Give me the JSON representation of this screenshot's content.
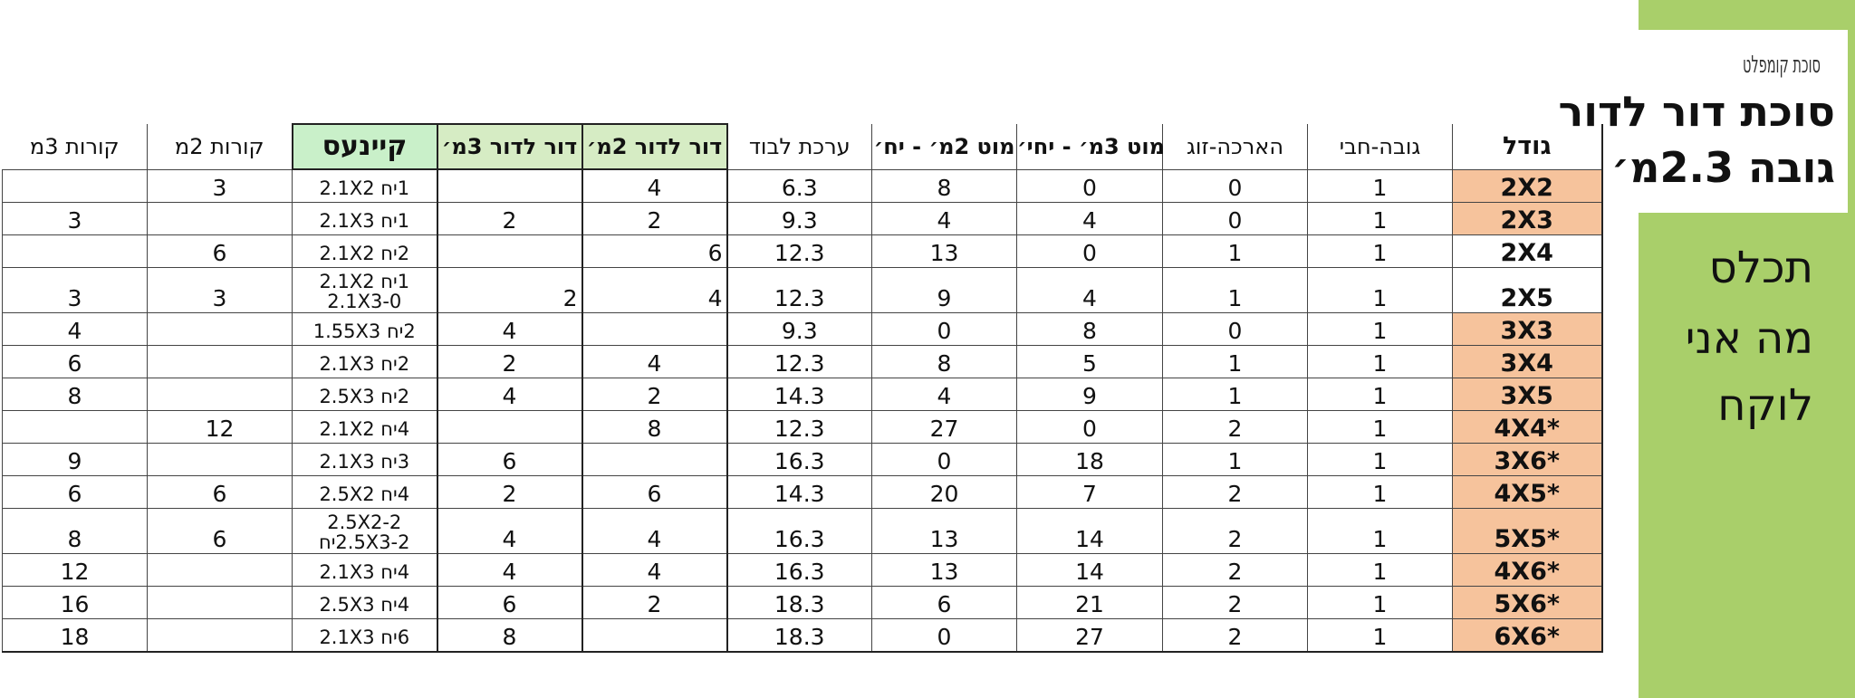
{
  "side_panel": {
    "brand": "סוכת קומפלט",
    "title_line1": "סוכת דור לדור",
    "title_line2": "גובה 2.3מ׳",
    "subtitle_line1": "תכלס",
    "subtitle_line2": "מה אני",
    "subtitle_line3": "לוקח",
    "green_color": "#a9cf6a"
  },
  "table": {
    "headers": {
      "size": "גודל",
      "height_pack": "גובה-חבי",
      "extension_pair": "הארכה-זוג",
      "pole3_unit": "מוט 3מ׳ - יחי׳",
      "pole2_unit": "מוט 2מ׳ - יח׳",
      "cover_value": "ערכת לבוד",
      "dor2": "דור לדור 2מ׳",
      "dor3": "דור לדור 3מ׳",
      "canvas": "קיינעס",
      "beams2": "קורות 2מ",
      "beams3": "קורות 3מ"
    },
    "highlight_color": "#f6c39c",
    "rows": [
      {
        "size": "2X2",
        "height_pack": "1",
        "extension_pair": "0",
        "pole3_unit": "0",
        "pole2_unit": "8",
        "cover_value": "6.3",
        "dor2": "4",
        "dor3": "",
        "canvas": [
          "1יח 2.1X2"
        ],
        "beams2": "3",
        "beams3": "",
        "highlight": true
      },
      {
        "size": "2X3",
        "height_pack": "1",
        "extension_pair": "0",
        "pole3_unit": "4",
        "pole2_unit": "4",
        "cover_value": "9.3",
        "dor2": "2",
        "dor3": "2",
        "canvas": [
          "1יח 2.1X3"
        ],
        "beams2": "",
        "beams3": "3",
        "highlight": true
      },
      {
        "size": "2X4",
        "height_pack": "1",
        "extension_pair": "1",
        "pole3_unit": "0",
        "pole2_unit": "13",
        "cover_value": "12.3",
        "dor2": "6",
        "dor3": "",
        "canvas": [
          "2יח 2.1X2"
        ],
        "beams2": "6",
        "beams3": "",
        "highlight": false
      },
      {
        "size": "2X5",
        "height_pack": "1",
        "extension_pair": "1",
        "pole3_unit": "4",
        "pole2_unit": "9",
        "cover_value": "12.3",
        "dor2": "4",
        "dor3": "2",
        "canvas": [
          "1יח 2.1X2",
          "2.1X3-0"
        ],
        "beams2": "3",
        "beams3": "3",
        "highlight": false
      },
      {
        "size": "3X3",
        "height_pack": "1",
        "extension_pair": "0",
        "pole3_unit": "8",
        "pole2_unit": "0",
        "cover_value": "9.3",
        "dor2": "",
        "dor3": "4",
        "canvas": [
          "2יח 1.55X3"
        ],
        "beams2": "",
        "beams3": "4",
        "highlight": true
      },
      {
        "size": "3X4",
        "height_pack": "1",
        "extension_pair": "1",
        "pole3_unit": "5",
        "pole2_unit": "8",
        "cover_value": "12.3",
        "dor2": "4",
        "dor3": "2",
        "canvas": [
          "2יח 2.1X3"
        ],
        "beams2": "",
        "beams3": "6",
        "highlight": true
      },
      {
        "size": "3X5",
        "height_pack": "1",
        "extension_pair": "1",
        "pole3_unit": "9",
        "pole2_unit": "4",
        "cover_value": "14.3",
        "dor2": "2",
        "dor3": "4",
        "canvas": [
          "2יח 2.5X3"
        ],
        "beams2": "",
        "beams3": "8",
        "highlight": true
      },
      {
        "size": "4X4*",
        "height_pack": "1",
        "extension_pair": "2",
        "pole3_unit": "0",
        "pole2_unit": "27",
        "cover_value": "12.3",
        "dor2": "8",
        "dor3": "",
        "canvas": [
          "4יח 2.1X2"
        ],
        "beams2": "12",
        "beams3": "",
        "highlight": true
      },
      {
        "size": "3X6*",
        "height_pack": "1",
        "extension_pair": "1",
        "pole3_unit": "18",
        "pole2_unit": "0",
        "cover_value": "16.3",
        "dor2": "",
        "dor3": "6",
        "canvas": [
          "3יח 2.1X3"
        ],
        "beams2": "",
        "beams3": "9",
        "highlight": true
      },
      {
        "size": "4X5*",
        "height_pack": "1",
        "extension_pair": "2",
        "pole3_unit": "7",
        "pole2_unit": "20",
        "cover_value": "14.3",
        "dor2": "6",
        "dor3": "2",
        "canvas": [
          "4יח 2.5X2"
        ],
        "beams2": "6",
        "beams3": "6",
        "highlight": true
      },
      {
        "size": "5X5*",
        "height_pack": "1",
        "extension_pair": "2",
        "pole3_unit": "14",
        "pole2_unit": "13",
        "cover_value": "16.3",
        "dor2": "4",
        "dor3": "4",
        "canvas": [
          "2.5X2-2",
          "2.5X3-2יח"
        ],
        "beams2": "6",
        "beams3": "8",
        "highlight": true
      },
      {
        "size": "4X6*",
        "height_pack": "1",
        "extension_pair": "2",
        "pole3_unit": "14",
        "pole2_unit": "13",
        "cover_value": "16.3",
        "dor2": "4",
        "dor3": "4",
        "canvas": [
          "4יח 2.1X3"
        ],
        "beams2": "",
        "beams3": "12",
        "highlight": true
      },
      {
        "size": "5X6*",
        "height_pack": "1",
        "extension_pair": "2",
        "pole3_unit": "21",
        "pole2_unit": "6",
        "cover_value": "18.3",
        "dor2": "2",
        "dor3": "6",
        "canvas": [
          "4יח 2.5X3"
        ],
        "beams2": "",
        "beams3": "16",
        "highlight": true
      },
      {
        "size": "6X6*",
        "height_pack": "1",
        "extension_pair": "2",
        "pole3_unit": "27",
        "pole2_unit": "0",
        "cover_value": "18.3",
        "dor2": "",
        "dor3": "8",
        "canvas": [
          "6יח 2.1X3"
        ],
        "beams2": "",
        "beams3": "18",
        "highlight": true
      }
    ]
  }
}
